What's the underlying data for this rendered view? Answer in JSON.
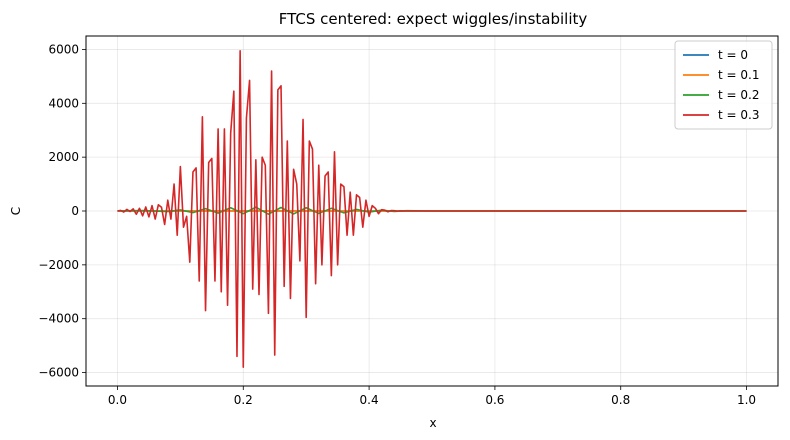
{
  "chart_data": {
    "type": "line",
    "title": "FTCS centered: expect wiggles/instability",
    "xlabel": "x",
    "ylabel": "C",
    "xlim": [
      -0.05,
      1.05
    ],
    "ylim": [
      -6500,
      6500
    ],
    "xticks": [
      0.0,
      0.2,
      0.4,
      0.6,
      0.8,
      1.0
    ],
    "xtick_labels": [
      "0.0",
      "0.2",
      "0.4",
      "0.6",
      "0.8",
      "1.0"
    ],
    "yticks": [
      -6000,
      -4000,
      -2000,
      0,
      2000,
      4000,
      6000
    ],
    "ytick_labels": [
      "−6000",
      "−4000",
      "−2000",
      "0",
      "2000",
      "4000",
      "6000"
    ],
    "grid": true,
    "legend_position": "top-right",
    "series": [
      {
        "name": "t = 0",
        "color": "#1f77b4",
        "x": [
          0.0,
          0.1,
          0.15,
          0.2,
          0.25,
          0.3,
          0.35,
          1.0
        ],
        "y": [
          0,
          0,
          1,
          1,
          1,
          1,
          0,
          0
        ]
      },
      {
        "name": "t = 0.1",
        "color": "#ff7f0e",
        "x": [
          0.0,
          0.05,
          0.1,
          0.12,
          0.15,
          0.18,
          0.2,
          0.22,
          0.25,
          0.28,
          0.3,
          0.32,
          0.35,
          0.38,
          0.4,
          0.45,
          1.0
        ],
        "y": [
          0,
          2,
          -3,
          5,
          -6,
          8,
          -6,
          7,
          -8,
          6,
          -5,
          6,
          -4,
          3,
          -2,
          1,
          0
        ]
      },
      {
        "name": "t = 0.2",
        "color": "#2ca02c",
        "x": [
          0.0,
          0.04,
          0.08,
          0.1,
          0.12,
          0.14,
          0.16,
          0.18,
          0.2,
          0.22,
          0.24,
          0.26,
          0.28,
          0.3,
          0.32,
          0.34,
          0.36,
          0.38,
          0.4,
          0.42,
          0.44,
          0.46,
          0.5,
          0.55,
          1.0
        ],
        "y": [
          0,
          15,
          -20,
          40,
          -60,
          90,
          -80,
          120,
          -100,
          140,
          -120,
          130,
          -110,
          120,
          -90,
          100,
          -70,
          60,
          -40,
          30,
          -15,
          10,
          0,
          0,
          0
        ]
      },
      {
        "name": "t = 0.3",
        "color": "#d62728",
        "x": [
          0.0,
          0.005,
          0.01,
          0.015,
          0.02,
          0.025,
          0.03,
          0.035,
          0.04,
          0.045,
          0.05,
          0.055,
          0.06,
          0.065,
          0.07,
          0.075,
          0.08,
          0.085,
          0.09,
          0.095,
          0.1,
          0.105,
          0.11,
          0.115,
          0.12,
          0.125,
          0.13,
          0.135,
          0.14,
          0.145,
          0.15,
          0.155,
          0.16,
          0.165,
          0.17,
          0.175,
          0.18,
          0.185,
          0.19,
          0.195,
          0.2,
          0.205,
          0.21,
          0.215,
          0.22,
          0.225,
          0.23,
          0.235,
          0.24,
          0.245,
          0.25,
          0.255,
          0.26,
          0.265,
          0.27,
          0.275,
          0.28,
          0.285,
          0.29,
          0.295,
          0.3,
          0.305,
          0.31,
          0.315,
          0.32,
          0.325,
          0.33,
          0.335,
          0.34,
          0.345,
          0.35,
          0.355,
          0.36,
          0.365,
          0.37,
          0.375,
          0.38,
          0.385,
          0.39,
          0.395,
          0.4,
          0.405,
          0.41,
          0.415,
          0.42,
          0.425,
          0.43,
          0.435,
          0.44,
          0.445,
          0.45,
          0.455,
          0.46,
          0.465,
          0.47,
          0.475,
          0.48,
          0.485,
          0.49,
          0.495,
          0.5,
          0.51,
          0.52,
          0.53,
          0.55,
          0.6,
          0.8,
          1.0
        ],
        "y": [
          0,
          20,
          -40,
          60,
          -20,
          80,
          -120,
          100,
          -180,
          150,
          -220,
          200,
          -300,
          230,
          140,
          -500,
          400,
          -300,
          1000,
          -900,
          1650,
          -600,
          -200,
          -1900,
          1450,
          1600,
          -2600,
          3500,
          -3700,
          1800,
          1950,
          -2600,
          3050,
          -3000,
          3050,
          -3500,
          2900,
          4450,
          -5400,
          5950,
          -5800,
          3450,
          4850,
          -2900,
          1900,
          -3100,
          2000,
          1700,
          -3800,
          5200,
          -5350,
          4500,
          4650,
          -2800,
          2600,
          -3250,
          1550,
          1000,
          -1850,
          3400,
          -3950,
          2600,
          2300,
          -2700,
          1700,
          -2000,
          1300,
          1450,
          -2400,
          2200,
          -2000,
          1000,
          900,
          -900,
          700,
          -900,
          600,
          500,
          -600,
          400,
          -200,
          200,
          100,
          -100,
          50,
          30,
          -30,
          15,
          10,
          -5,
          5,
          0,
          0,
          0,
          0,
          0,
          0,
          0,
          0,
          0,
          0,
          0,
          0,
          0,
          0,
          0,
          0,
          0
        ]
      }
    ]
  }
}
